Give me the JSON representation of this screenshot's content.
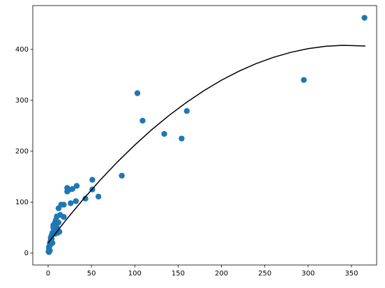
{
  "chart_data": {
    "type": "scatter",
    "xlim": [
      -17.7,
      379
    ],
    "ylim": [
      -23.3,
      486
    ],
    "xticks": [
      0,
      50,
      100,
      150,
      200,
      250,
      300,
      350
    ],
    "yticks": [
      0,
      100,
      200,
      300,
      400
    ],
    "series": [
      {
        "type": "scatter",
        "color": "#1f77b4",
        "x": [
          365,
          295,
          103,
          109,
          134,
          154,
          160,
          85,
          51,
          51,
          58,
          43,
          33,
          32,
          28,
          26,
          22,
          22,
          24,
          18,
          15,
          18,
          12,
          10,
          12,
          11,
          13,
          8,
          6,
          5,
          4,
          3,
          2,
          1,
          0.5,
          1,
          2,
          3,
          6,
          7,
          9,
          10,
          8,
          14,
          5,
          4,
          2,
          1
        ],
        "values": [
          462,
          340,
          314,
          260,
          234,
          225,
          279,
          152,
          144,
          125,
          111,
          107,
          132,
          102,
          126,
          98,
          128,
          121,
          124,
          95,
          95,
          71,
          88,
          72,
          60,
          40,
          42,
          60,
          50,
          40,
          35,
          25,
          15,
          8,
          3,
          12,
          20,
          30,
          55,
          45,
          65,
          50,
          38,
          75,
          20,
          28,
          5,
          2
        ]
      },
      {
        "type": "line",
        "color": "#000000",
        "x": [
          0,
          20,
          40,
          60,
          80,
          100,
          120,
          140,
          160,
          180,
          200,
          220,
          240,
          260,
          280,
          300,
          320,
          340,
          366
        ],
        "values": [
          20.0,
          63.7,
          104.7,
          143.2,
          179.1,
          212.3,
          243.0,
          271.0,
          296.4,
          319.2,
          339.5,
          357.1,
          372.1,
          384.4,
          394.2,
          401.4,
          406.0,
          407.9,
          406.6
        ]
      }
    ]
  }
}
